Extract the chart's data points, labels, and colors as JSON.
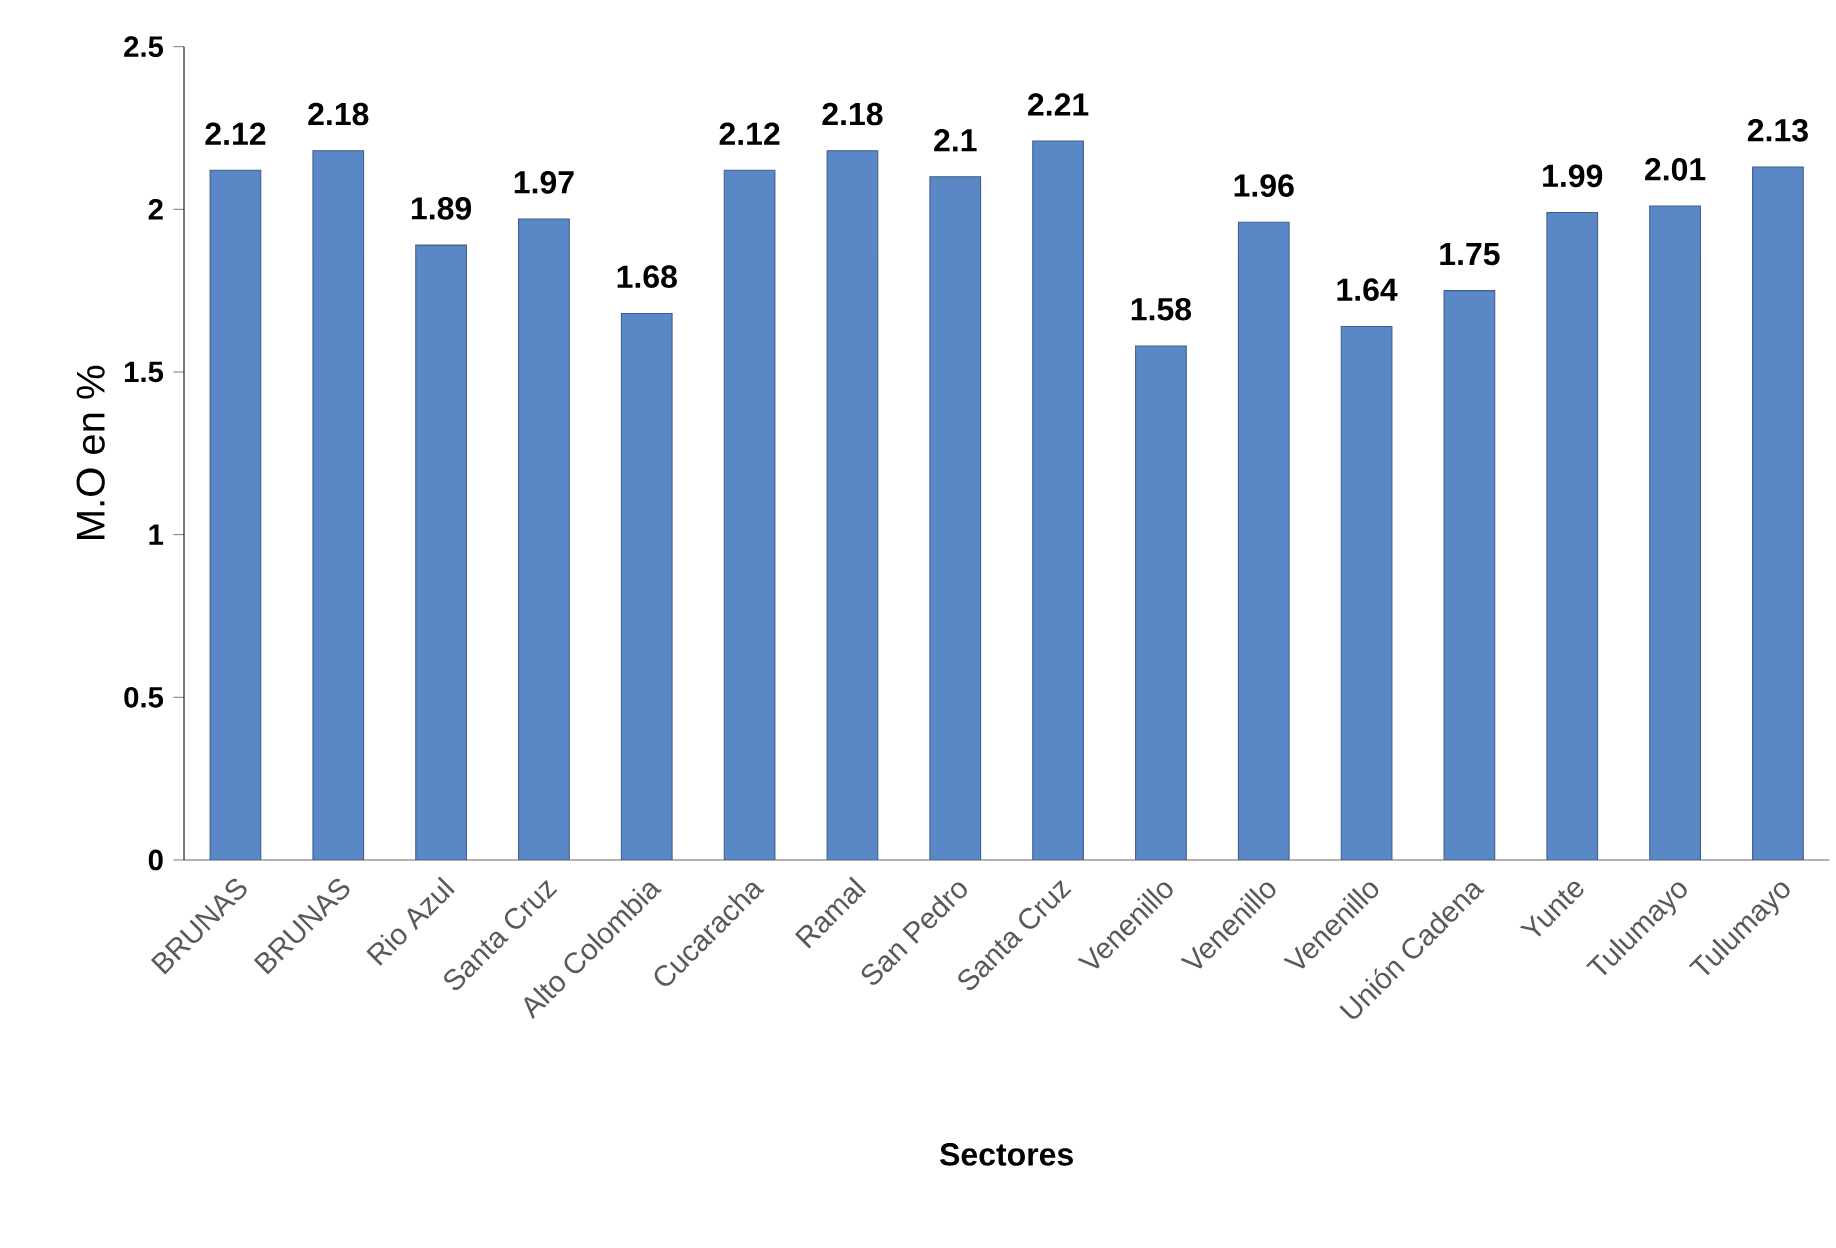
{
  "chart_data": {
    "type": "bar",
    "xlabel": "Sectores",
    "ylabel": "M.O en %",
    "categories": [
      "BRUNAS",
      "BRUNAS",
      "Rio Azul",
      "Santa Cruz",
      "Alto Colombia",
      "Cucaracha",
      "Ramal",
      "San Pedro",
      "Santa Cruz",
      "Venenillo",
      "Venenillo",
      "Venenillo",
      "Unión Cadena",
      "Yunte",
      "Tulumayo",
      "Tulumayo"
    ],
    "values": [
      2.12,
      2.18,
      1.89,
      1.97,
      1.68,
      2.12,
      2.18,
      2.1,
      2.21,
      1.58,
      1.96,
      1.64,
      1.75,
      1.99,
      2.01,
      2.13
    ],
    "color": "#5a87c6",
    "ylim": [
      0,
      2.5
    ],
    "yticks": [
      0,
      0.5,
      1,
      1.5,
      2,
      2.5
    ],
    "grid": false,
    "data_labels": true
  }
}
